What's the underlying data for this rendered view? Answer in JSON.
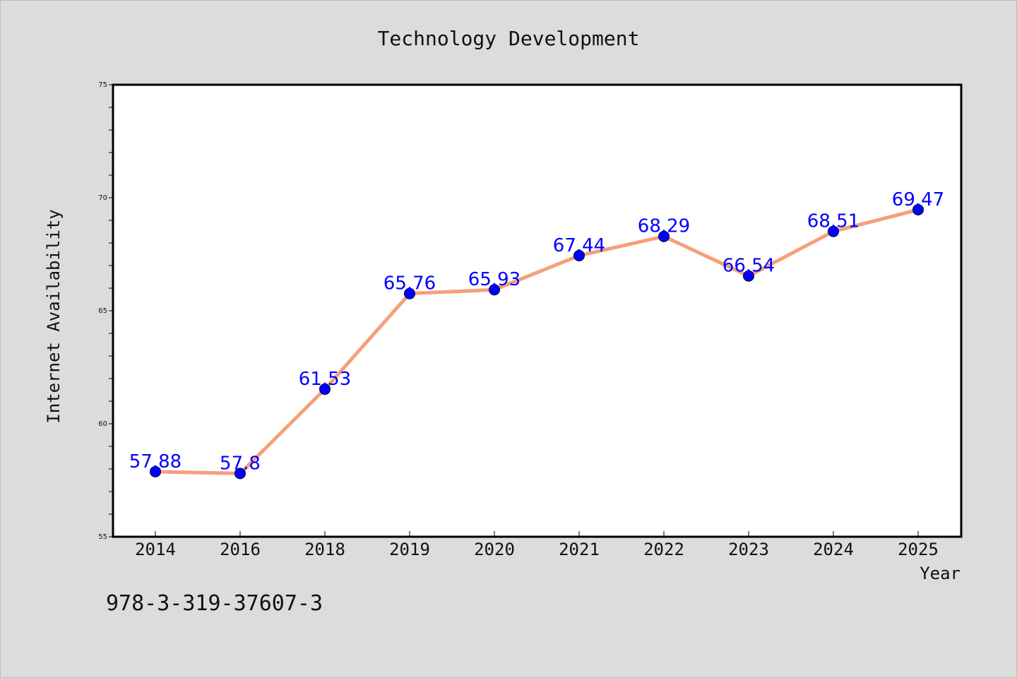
{
  "chart_data": {
    "type": "line",
    "title": "Technology Development",
    "xlabel": "Year",
    "ylabel": "Internet Availability",
    "categories": [
      "2014",
      "2016",
      "2018",
      "2019",
      "2020",
      "2021",
      "2022",
      "2023",
      "2024",
      "2025"
    ],
    "series": [
      {
        "values": [
          57.88,
          57.8,
          61.53,
          65.76,
          65.93,
          67.44,
          68.29,
          66.54,
          68.51,
          69.47
        ],
        "data_labels": [
          "57.88",
          "57.8",
          "61.53",
          "65.76",
          "65.93",
          "67.44",
          "68.29",
          "66.54",
          "68.51",
          "69.47"
        ],
        "line_color": "#f4a07a",
        "marker_color": "#0000ff"
      }
    ],
    "ylim": [
      55,
      75
    ],
    "yticks": [
      "55",
      "60",
      "65",
      "70",
      "75"
    ],
    "grid": false,
    "data_labels_shown": true
  },
  "footer": {
    "isbn": "978-3-319-37607-3"
  },
  "colors": {
    "background": "#dcdcdc",
    "plot_background": "#ffffff"
  }
}
